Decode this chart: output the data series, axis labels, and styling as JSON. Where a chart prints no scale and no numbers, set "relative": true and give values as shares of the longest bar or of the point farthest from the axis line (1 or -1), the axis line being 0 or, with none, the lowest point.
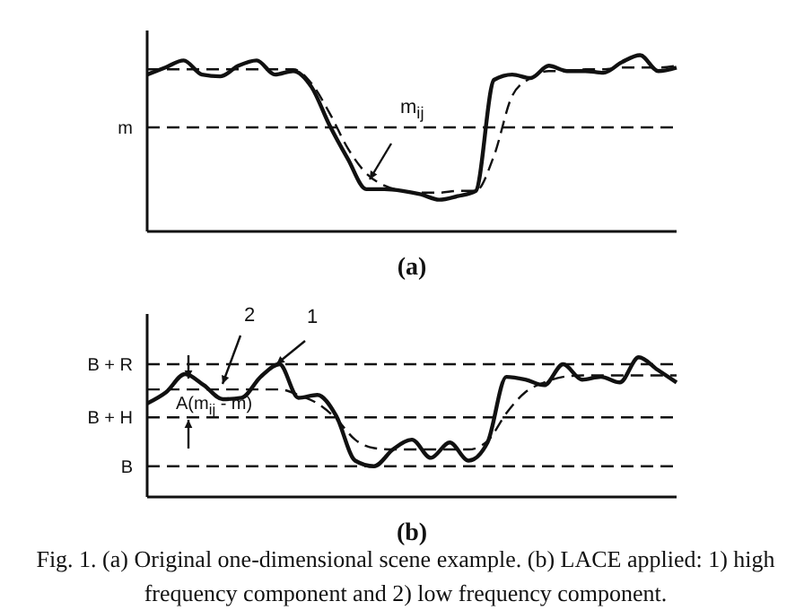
{
  "chart_data": [
    {
      "type": "line",
      "relative": true,
      "xlabel": "(a)",
      "categories": [
        null,
        null,
        null,
        null,
        null,
        null,
        null,
        null,
        null,
        null,
        null,
        null,
        null,
        null,
        null,
        null,
        null,
        null,
        null,
        null,
        null,
        null,
        null,
        null,
        null,
        null,
        null,
        null,
        null,
        null
      ],
      "series": [
        {
          "color": "#111111",
          "line_style": "solid",
          "values": [
            0.89,
            0.93,
            0.97,
            0.89,
            0.88,
            0.94,
            0.97,
            0.89,
            0.91,
            0.82,
            0.6,
            0.41,
            0.24,
            0.24,
            0.23,
            0.21,
            0.18,
            0.2,
            0.23,
            0.86,
            0.89,
            0.87,
            0.94,
            0.91,
            0.91,
            0.9,
            0.96,
            1.0,
            0.91,
            0.93
          ]
        },
        {
          "color": "#111111",
          "line_style": "dashed",
          "values": [
            0.92,
            0.92,
            0.92,
            0.92,
            0.92,
            0.92,
            0.92,
            0.92,
            0.92,
            0.84,
            0.67,
            0.47,
            0.33,
            0.26,
            0.23,
            0.22,
            0.22,
            0.23,
            0.23,
            0.43,
            0.77,
            0.87,
            0.91,
            0.91,
            0.92,
            0.92,
            0.93,
            0.93,
            0.93,
            0.94
          ]
        }
      ],
      "ref_lines": [
        {
          "axis": "y",
          "value": 0.59,
          "label": "m",
          "line_style": "dashed",
          "color": "#111111"
        }
      ],
      "annotations": [
        "m$_{ij}$"
      ]
    },
    {
      "type": "line",
      "relative": true,
      "xlabel": "(b)",
      "categories": [
        null,
        null,
        null,
        null,
        null,
        null,
        null,
        null,
        null,
        null,
        null,
        null,
        null,
        null,
        null,
        null,
        null,
        null,
        null,
        null,
        null,
        null,
        null,
        null,
        null,
        null,
        null,
        null,
        null
      ],
      "series": [
        {
          "color": "#111111",
          "line_style": "solid",
          "values": [
            0.67,
            0.75,
            0.88,
            0.8,
            0.7,
            0.71,
            0.86,
            0.95,
            0.71,
            0.73,
            0.58,
            0.26,
            0.22,
            0.34,
            0.41,
            0.28,
            0.39,
            0.26,
            0.39,
            0.86,
            0.84,
            0.8,
            0.95,
            0.84,
            0.86,
            0.82,
            1.0,
            0.91,
            0.82
          ]
        },
        {
          "color": "#111111",
          "line_style": "dashed",
          "values": [
            0.77,
            0.77,
            0.77,
            0.77,
            0.77,
            0.77,
            0.77,
            0.77,
            0.73,
            0.67,
            0.56,
            0.41,
            0.35,
            0.34,
            0.34,
            0.34,
            0.34,
            0.34,
            0.4,
            0.6,
            0.75,
            0.82,
            0.86,
            0.87,
            0.87,
            0.87,
            0.87,
            0.87,
            0.87
          ]
        }
      ],
      "ref_lines": [
        {
          "axis": "y",
          "value": 0.95,
          "label": "B + R",
          "line_style": "dashed",
          "color": "#111111"
        },
        {
          "axis": "y",
          "value": 0.57,
          "label": "B + H",
          "line_style": "dashed",
          "color": "#111111"
        },
        {
          "axis": "y",
          "value": 0.22,
          "label": "B",
          "line_style": "dashed",
          "color": "#111111"
        }
      ],
      "annotations": [
        "2",
        "1",
        "A(m$_{ij}$ - m)",
        "Fig. 1. (a) Original one-dimensional scene example. (b) LACE applied: 1) high frequency component and 2) low frequency component."
      ]
    }
  ]
}
